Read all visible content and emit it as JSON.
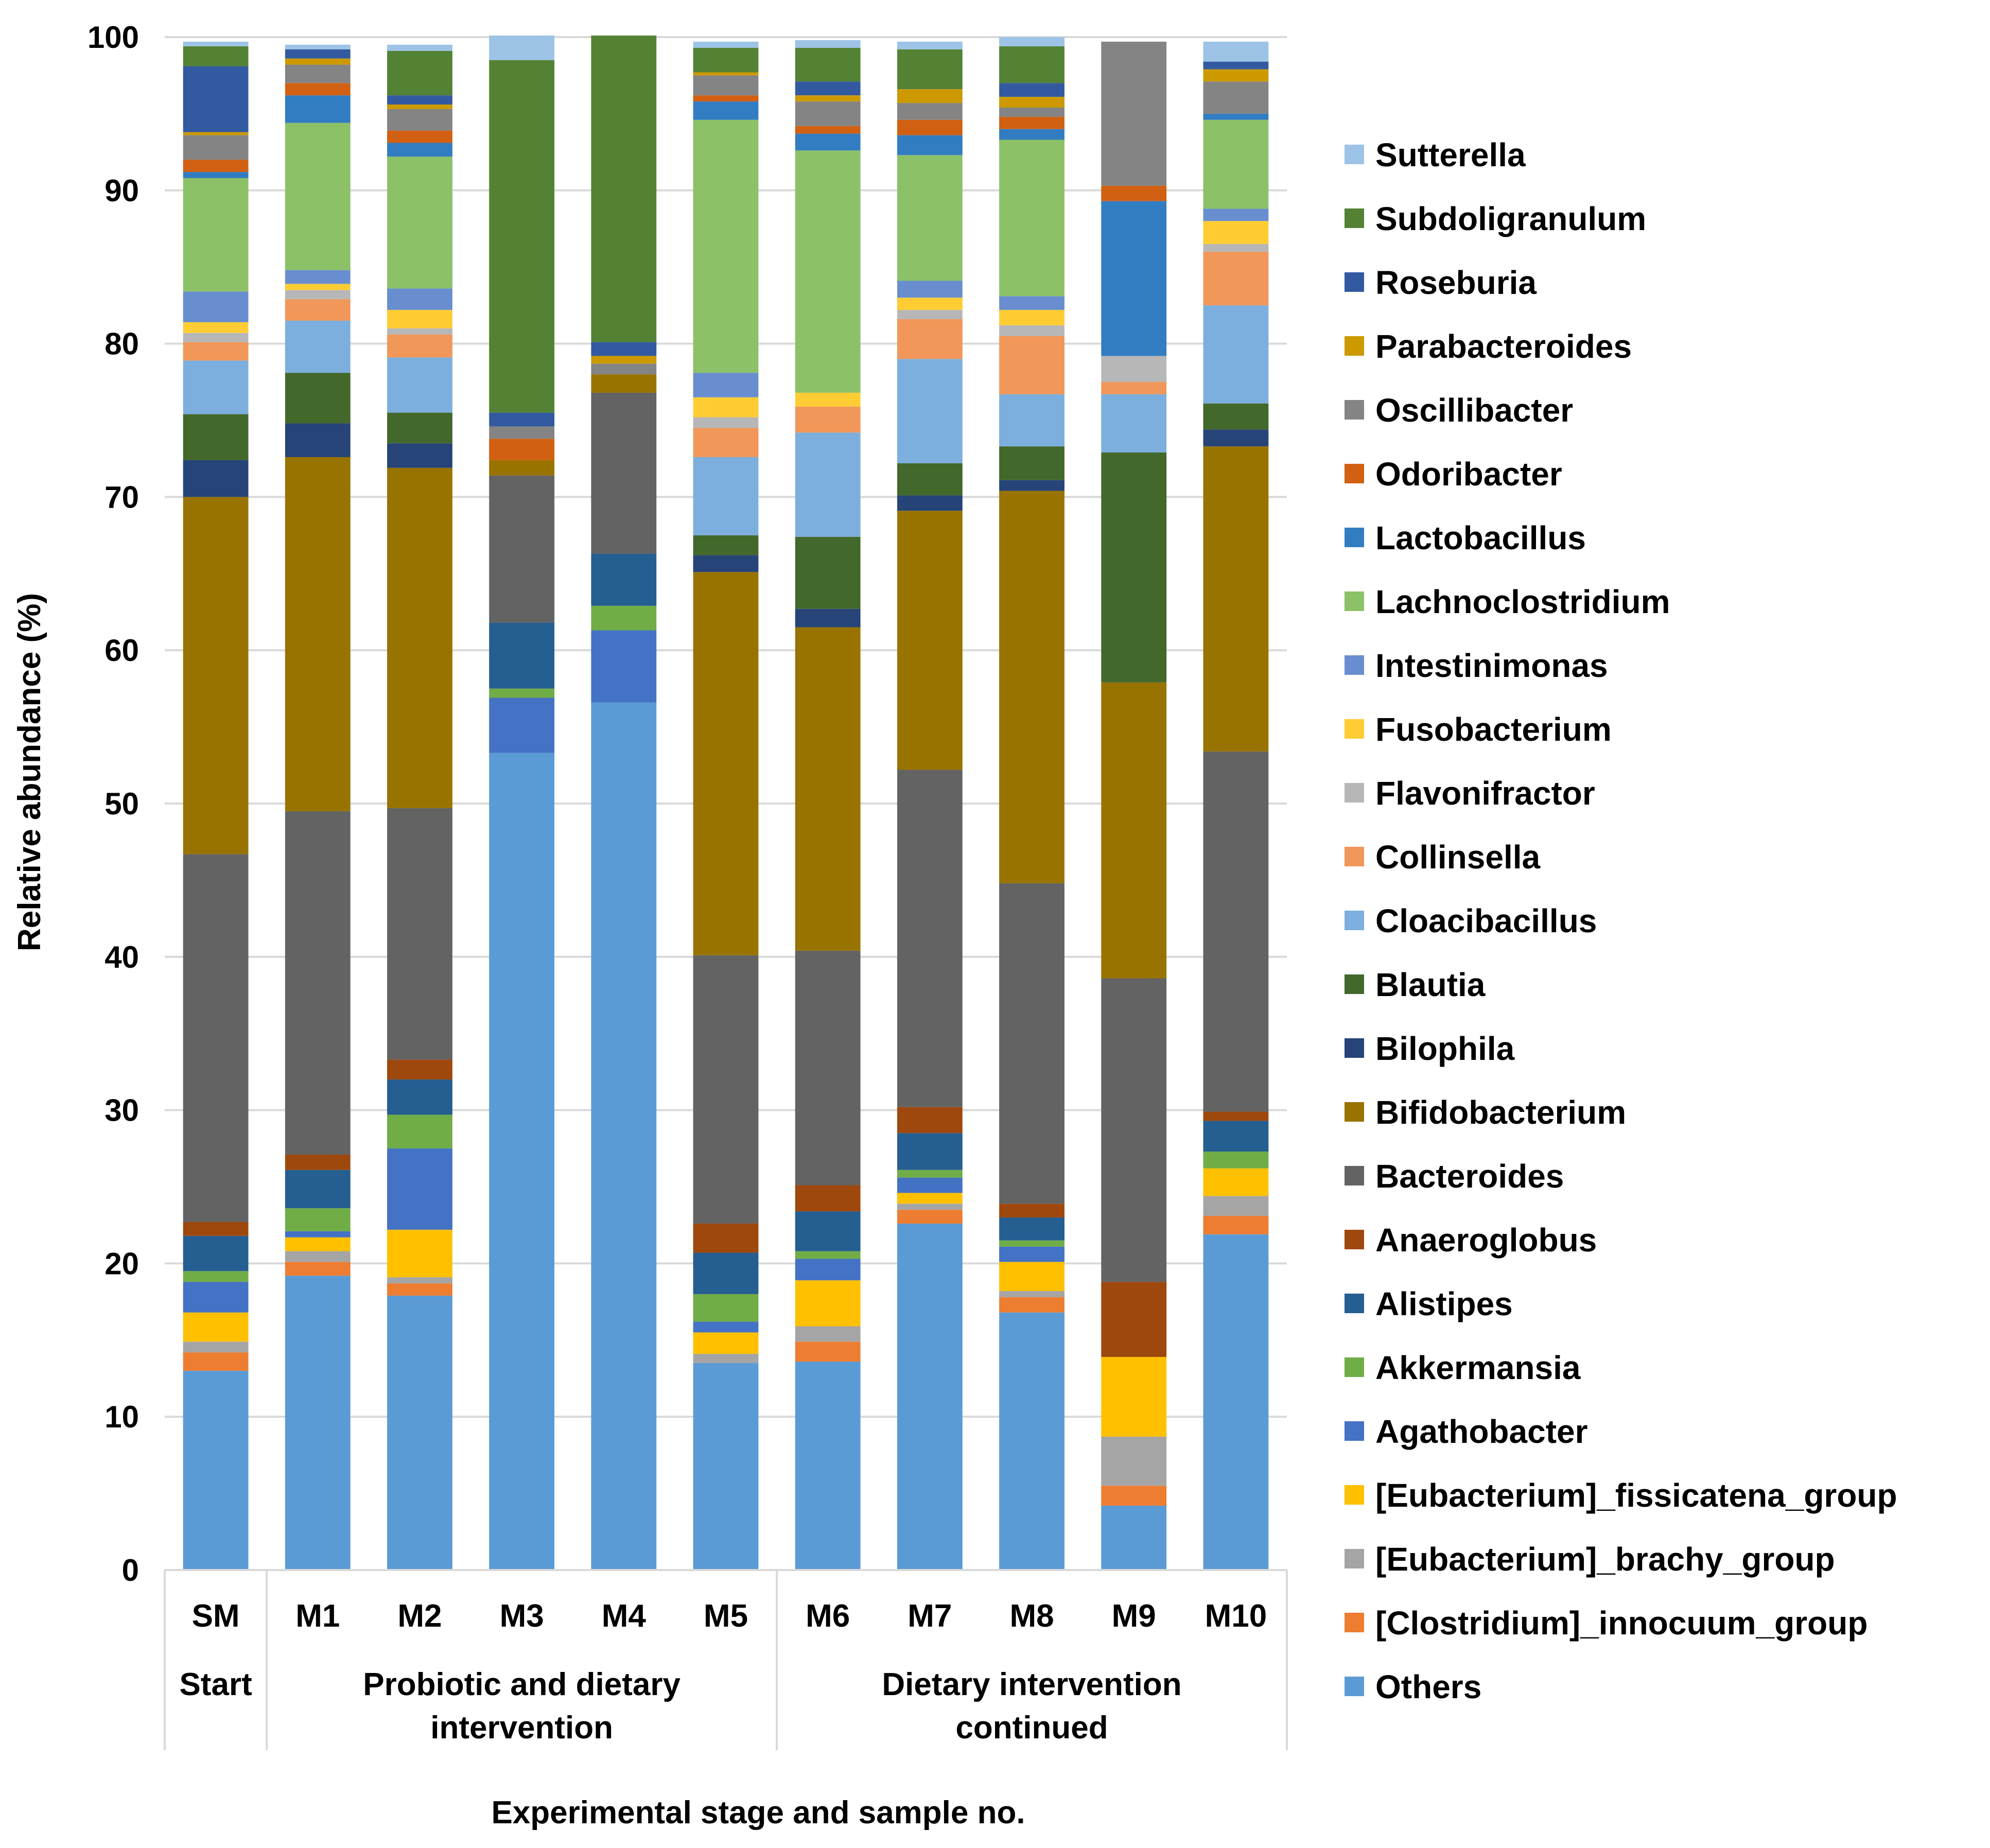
{
  "chart_data": {
    "type": "bar",
    "stacked": true,
    "title": "",
    "ylabel": "Relative abundance (%)",
    "xlabel": "Experimental stage and sample no.",
    "ylim": [
      0,
      100
    ],
    "yticks": [
      "0",
      "10",
      "20",
      "30",
      "40",
      "50",
      "60",
      "70",
      "80",
      "90",
      "100"
    ],
    "grid": true,
    "legend_position": "right",
    "categories": [
      "SM",
      "M1",
      "M2",
      "M3",
      "M4",
      "M5",
      "M6",
      "M7",
      "M8",
      "M9",
      "M10"
    ],
    "stages": [
      {
        "label_lines": [
          "Start"
        ],
        "samples": [
          "SM"
        ]
      },
      {
        "label_lines": [
          "Probiotic and dietary",
          "intervention"
        ],
        "samples": [
          "M1",
          "M2",
          "M3",
          "M4",
          "M5"
        ]
      },
      {
        "label_lines": [
          "Dietary intervention",
          "continued"
        ],
        "samples": [
          "M6",
          "M7",
          "M8",
          "M9",
          "M10"
        ]
      }
    ],
    "series": [
      {
        "name": "Others",
        "color": "#5B9BD5",
        "values": [
          13.0,
          19.2,
          17.9,
          53.3,
          56.6,
          13.5,
          13.6,
          22.6,
          16.8,
          4.2,
          21.9
        ]
      },
      {
        "name": "[Clostridium]_innocuum_group",
        "color": "#ED7D31",
        "values": [
          1.2,
          0.9,
          0.8,
          0,
          0,
          0,
          1.3,
          0.9,
          1.0,
          1.3,
          1.2
        ]
      },
      {
        "name": "[Eubacterium]_brachy_group",
        "color": "#A5A5A5",
        "values": [
          0.7,
          0.7,
          0.4,
          0,
          0,
          0.6,
          1.0,
          0.4,
          0.4,
          3.2,
          1.3
        ]
      },
      {
        "name": "[Eubacterium]_fissicatena_group",
        "color": "#FFC000",
        "values": [
          1.9,
          0.9,
          3.1,
          0,
          0,
          1.4,
          3.0,
          0.7,
          1.9,
          5.2,
          1.8
        ]
      },
      {
        "name": "Agathobacter",
        "color": "#4472C4",
        "values": [
          2.0,
          0.4,
          5.3,
          3.6,
          4.7,
          0.7,
          1.4,
          1.0,
          1.0,
          0,
          0
        ]
      },
      {
        "name": "Akkermansia",
        "color": "#70AD47",
        "values": [
          0.7,
          1.5,
          2.2,
          0.6,
          1.6,
          1.8,
          0.5,
          0.5,
          0.4,
          0,
          1.1
        ]
      },
      {
        "name": "Alistipes",
        "color": "#255E91",
        "values": [
          2.3,
          2.5,
          2.3,
          4.3,
          3.4,
          2.7,
          2.6,
          2.4,
          1.5,
          0,
          2.0
        ]
      },
      {
        "name": "Anaeroglobus",
        "color": "#9E480E",
        "values": [
          0.9,
          1.0,
          1.3,
          0,
          0,
          1.9,
          1.7,
          1.7,
          0.9,
          4.9,
          0.6
        ]
      },
      {
        "name": "Bacteroides",
        "color": "#636363",
        "values": [
          24.0,
          22.4,
          16.4,
          9.6,
          10.5,
          17.5,
          15.3,
          22.0,
          20.9,
          19.8,
          23.5
        ]
      },
      {
        "name": "Bifidobacterium",
        "color": "#997300",
        "values": [
          23.3,
          23.1,
          22.2,
          1.0,
          1.2,
          25.0,
          21.1,
          16.9,
          25.6,
          19.3,
          19.9
        ]
      },
      {
        "name": "Bilophila",
        "color": "#264478",
        "values": [
          2.4,
          2.2,
          1.6,
          0,
          0,
          1.1,
          1.2,
          1.0,
          0.7,
          0,
          1.1
        ]
      },
      {
        "name": "Blautia",
        "color": "#43682B",
        "values": [
          3.0,
          3.3,
          2.0,
          0,
          0,
          1.3,
          4.7,
          2.1,
          2.2,
          15.0,
          1.7
        ]
      },
      {
        "name": "Cloacibacillus",
        "color": "#7CAFDD",
        "values": [
          3.5,
          3.4,
          3.6,
          0,
          0,
          5.1,
          6.8,
          6.8,
          3.4,
          3.8,
          6.4
        ]
      },
      {
        "name": "Collinsella",
        "color": "#F1975A",
        "values": [
          1.2,
          1.4,
          1.5,
          0,
          0,
          1.9,
          1.7,
          2.6,
          3.8,
          0.8,
          3.5
        ]
      },
      {
        "name": "Flavonifractor",
        "color": "#B7B7B7",
        "values": [
          0.6,
          0.6,
          0.4,
          0,
          0,
          0.7,
          0,
          0.6,
          0.7,
          1.7,
          0.5
        ]
      },
      {
        "name": "Fusobacterium",
        "color": "#FFCD33",
        "values": [
          0.7,
          0.4,
          1.2,
          0,
          0,
          1.3,
          0.9,
          0.8,
          1.0,
          0,
          1.5
        ]
      },
      {
        "name": "Intestinimonas",
        "color": "#698ED0",
        "values": [
          2.0,
          0.9,
          1.4,
          0,
          0,
          1.6,
          0,
          1.1,
          0.9,
          0,
          0.8
        ]
      },
      {
        "name": "Lachnoclostridium",
        "color": "#8CC168",
        "values": [
          7.4,
          9.6,
          8.6,
          0,
          0,
          16.5,
          15.8,
          8.2,
          10.2,
          0,
          5.8
        ]
      },
      {
        "name": "Lactobacillus",
        "color": "#327DC2",
        "values": [
          0.4,
          1.8,
          0.9,
          0,
          0,
          1.2,
          1.1,
          1.3,
          0.7,
          10.1,
          0.4
        ]
      },
      {
        "name": "Odoribacter",
        "color": "#D26012",
        "values": [
          0.8,
          0.8,
          0.8,
          1.4,
          0,
          0.4,
          0.5,
          1.0,
          0.8,
          1.0,
          0
        ]
      },
      {
        "name": "Oscillibacter",
        "color": "#848484",
        "values": [
          1.6,
          1.2,
          1.4,
          0.8,
          0.7,
          1.3,
          1.6,
          1.1,
          0.6,
          9.4,
          2.1
        ]
      },
      {
        "name": "Parabacteroides",
        "color": "#CC9A00",
        "values": [
          0.2,
          0.4,
          0.3,
          0,
          0.5,
          0.2,
          0.4,
          0.9,
          0.7,
          0,
          0.8
        ]
      },
      {
        "name": "Roseburia",
        "color": "#335AA1",
        "values": [
          4.3,
          0.6,
          0.6,
          0.9,
          0.9,
          0,
          0.9,
          0,
          0.9,
          0,
          0.5
        ]
      },
      {
        "name": "Subdoligranulum",
        "color": "#548235",
        "values": [
          1.3,
          0,
          2.9,
          23.0,
          20.0,
          1.6,
          2.2,
          2.6,
          2.4,
          0,
          0
        ]
      },
      {
        "name": "Sutterella",
        "color": "#9DC3E6",
        "values": [
          0.3,
          0.3,
          0.4,
          1.6,
          0,
          0.4,
          0.5,
          0.5,
          0.6,
          0,
          1.3
        ]
      }
    ]
  }
}
